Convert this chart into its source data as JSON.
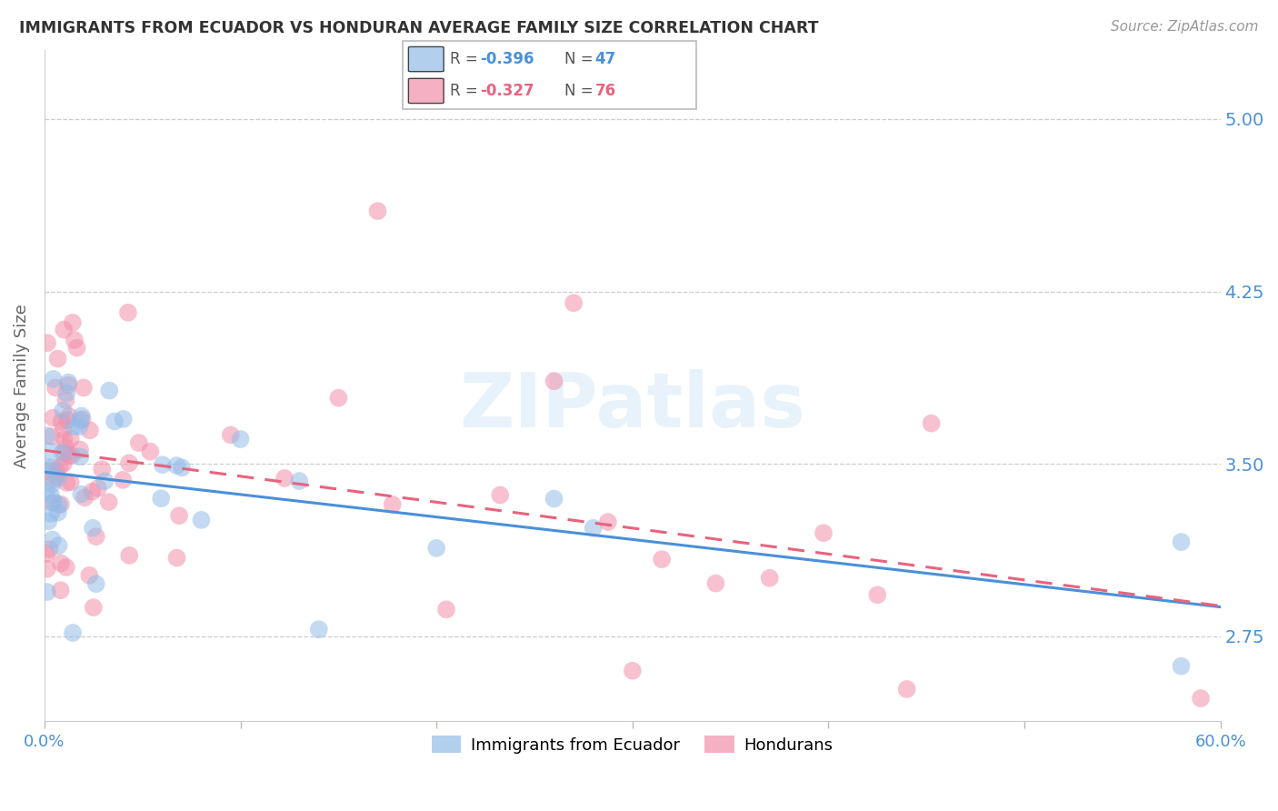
{
  "title": "IMMIGRANTS FROM ECUADOR VS HONDURAN AVERAGE FAMILY SIZE CORRELATION CHART",
  "source": "Source: ZipAtlas.com",
  "ylabel": "Average Family Size",
  "yticks": [
    2.75,
    3.5,
    4.25,
    5.0
  ],
  "xlim": [
    0.0,
    0.6
  ],
  "ylim": [
    2.38,
    5.3
  ],
  "watermark": "ZIPatlas",
  "ecuador_color": "#92bce8",
  "hondurans_color": "#f28faa",
  "ecuador_line_color": "#4a90d9",
  "hondurans_line_color": "#e8637e",
  "ecuador_R": -0.396,
  "ecuador_N": 47,
  "hondurans_R": -0.327,
  "hondurans_N": 76,
  "ecuador_seed": 42,
  "hondurans_seed": 7
}
